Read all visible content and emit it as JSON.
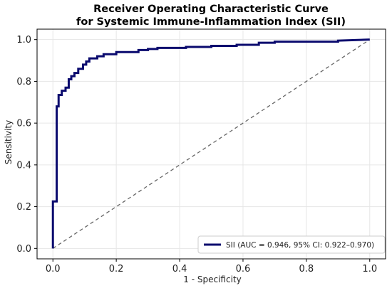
{
  "chart_data": {
    "type": "line",
    "title": [
      "Receiver Operating Characteristic Curve",
      "for Systemic Immune-Inflammation Index (SII)"
    ],
    "xlabel": "1 - Specificity",
    "ylabel": "Sensitivity",
    "xlim": [
      -0.05,
      1.05
    ],
    "ylim": [
      -0.05,
      1.05
    ],
    "xticks": [
      "0.0",
      "0.2",
      "0.4",
      "0.6",
      "0.8",
      "1.0"
    ],
    "yticks": [
      "0.0",
      "0.2",
      "0.4",
      "0.6",
      "0.8",
      "1.0"
    ],
    "grid": true,
    "legend_position": "bottom-right",
    "series": [
      {
        "name": "SII (AUC = 0.946, 95% CI: 0.922–0.970)",
        "color": "#0a0a6e",
        "x": [
          0.0,
          0.0,
          0.012,
          0.012,
          0.018,
          0.018,
          0.028,
          0.028,
          0.04,
          0.04,
          0.05,
          0.05,
          0.058,
          0.058,
          0.068,
          0.068,
          0.08,
          0.08,
          0.095,
          0.095,
          0.105,
          0.105,
          0.115,
          0.115,
          0.14,
          0.14,
          0.16,
          0.16,
          0.2,
          0.2,
          0.27,
          0.27,
          0.3,
          0.3,
          0.33,
          0.33,
          0.42,
          0.42,
          0.5,
          0.5,
          0.58,
          0.58,
          0.65,
          0.65,
          0.7,
          0.7,
          0.8,
          0.8,
          0.9,
          0.9,
          1.0
        ],
        "y": [
          0.0,
          0.225,
          0.225,
          0.68,
          0.68,
          0.735,
          0.735,
          0.755,
          0.755,
          0.77,
          0.77,
          0.81,
          0.81,
          0.825,
          0.825,
          0.84,
          0.84,
          0.86,
          0.86,
          0.88,
          0.88,
          0.895,
          0.895,
          0.91,
          0.91,
          0.92,
          0.92,
          0.93,
          0.93,
          0.94,
          0.94,
          0.95,
          0.95,
          0.955,
          0.955,
          0.96,
          0.96,
          0.965,
          0.965,
          0.97,
          0.97,
          0.975,
          0.975,
          0.985,
          0.985,
          0.99,
          0.99,
          0.99,
          0.99,
          0.995,
          1.0
        ]
      }
    ],
    "reference_line": {
      "x": [
        0.0,
        1.0
      ],
      "y": [
        0.0,
        1.0
      ],
      "color": "#666666"
    }
  }
}
